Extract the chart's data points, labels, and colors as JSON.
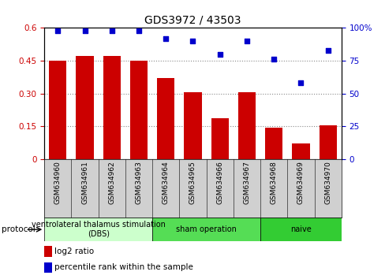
{
  "title": "GDS3972 / 43503",
  "samples": [
    "GSM634960",
    "GSM634961",
    "GSM634962",
    "GSM634963",
    "GSM634964",
    "GSM634965",
    "GSM634966",
    "GSM634967",
    "GSM634968",
    "GSM634969",
    "GSM634970"
  ],
  "log2_ratio": [
    0.45,
    0.47,
    0.47,
    0.45,
    0.37,
    0.305,
    0.185,
    0.305,
    0.145,
    0.07,
    0.155
  ],
  "percentile_rank": [
    98,
    98,
    98,
    98,
    92,
    90,
    80,
    90,
    76,
    58,
    83
  ],
  "bar_color": "#cc0000",
  "dot_color": "#0000cc",
  "ylim_left": [
    0,
    0.6
  ],
  "ylim_right": [
    0,
    100
  ],
  "yticks_left": [
    0,
    0.15,
    0.3,
    0.45,
    0.6
  ],
  "ytick_labels_left": [
    "0",
    "0.15",
    "0.30",
    "0.45",
    "0.6"
  ],
  "yticks_right": [
    0,
    25,
    50,
    75,
    100
  ],
  "ytick_labels_right": [
    "0",
    "25",
    "50",
    "75",
    "100%"
  ],
  "groups": [
    {
      "label": "ventrolateral thalamus stimulation\n(DBS)",
      "start": 0,
      "end": 3,
      "color": "#ccffcc"
    },
    {
      "label": "sham operation",
      "start": 4,
      "end": 7,
      "color": "#55dd55"
    },
    {
      "label": "naive",
      "start": 8,
      "end": 10,
      "color": "#33cc33"
    }
  ],
  "protocol_label": "protocol",
  "legend_bar_label": "log2 ratio",
  "legend_dot_label": "percentile rank within the sample",
  "bg_color": "#ffffff",
  "sample_bg_color": "#d0d0d0",
  "title_fontsize": 10,
  "tick_fontsize": 7.5,
  "sample_fontsize": 6.5,
  "group_fontsize": 7
}
